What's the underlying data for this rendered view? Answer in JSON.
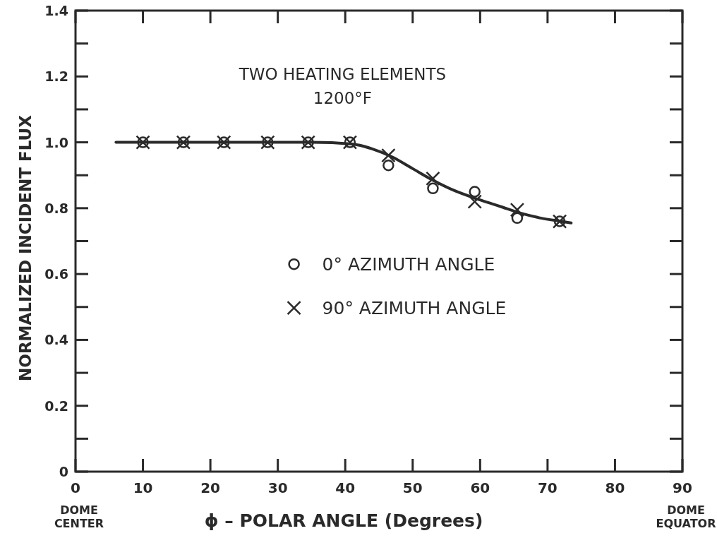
{
  "chart_data": {
    "type": "scatter",
    "title": "TWO HEATING ELEMENTS",
    "subtitle": "1200°F",
    "xlabel": "ϕ – POLAR ANGLE (Degrees)",
    "ylabel": "NORMALIZED INCIDENT FLUX",
    "annotations": [
      "DOME CENTER",
      "DOME EQUATOR"
    ],
    "xlim": [
      0,
      90
    ],
    "xticks": [
      0,
      10,
      20,
      30,
      40,
      50,
      60,
      70,
      80,
      90
    ],
    "ylim": [
      0,
      1.4
    ],
    "yticks": [
      0,
      0.2,
      0.4,
      0.6,
      0.8,
      {
        "value": 1,
        "label": "1.0"
      },
      1.2,
      1.4
    ],
    "grid": false,
    "legend": "center",
    "color": "#2a2a2a",
    "series": [
      {
        "name": "0° AZIMUTH ANGLE",
        "marker": "circle",
        "x": [
          10,
          16,
          22,
          28.5,
          34.5,
          40.7,
          46.4,
          53,
          59.2,
          65.5,
          71.8
        ],
        "values": [
          1,
          1,
          1,
          1,
          1,
          1,
          0.93,
          0.86,
          0.85,
          0.77,
          0.76
        ]
      },
      {
        "name": "90° AZIMUTH ANGLE",
        "marker": "cross",
        "x": [
          10,
          16,
          22,
          28.5,
          34.5,
          40.7,
          46.4,
          53,
          59.2,
          65.5,
          71.8
        ],
        "values": [
          1,
          1,
          1,
          1,
          1,
          1,
          0.96,
          0.89,
          0.82,
          0.795,
          0.76
        ]
      },
      {
        "type": "line",
        "marker": "none",
        "line_style": "solid",
        "x": [
          6,
          20,
          35,
          41,
          44,
          47,
          50,
          53,
          56,
          60,
          63,
          66,
          69,
          72,
          73.5
        ],
        "values": [
          1,
          1,
          1,
          0.995,
          0.98,
          0.955,
          0.92,
          0.885,
          0.855,
          0.825,
          0.805,
          0.785,
          0.77,
          0.76,
          0.755
        ]
      }
    ]
  }
}
